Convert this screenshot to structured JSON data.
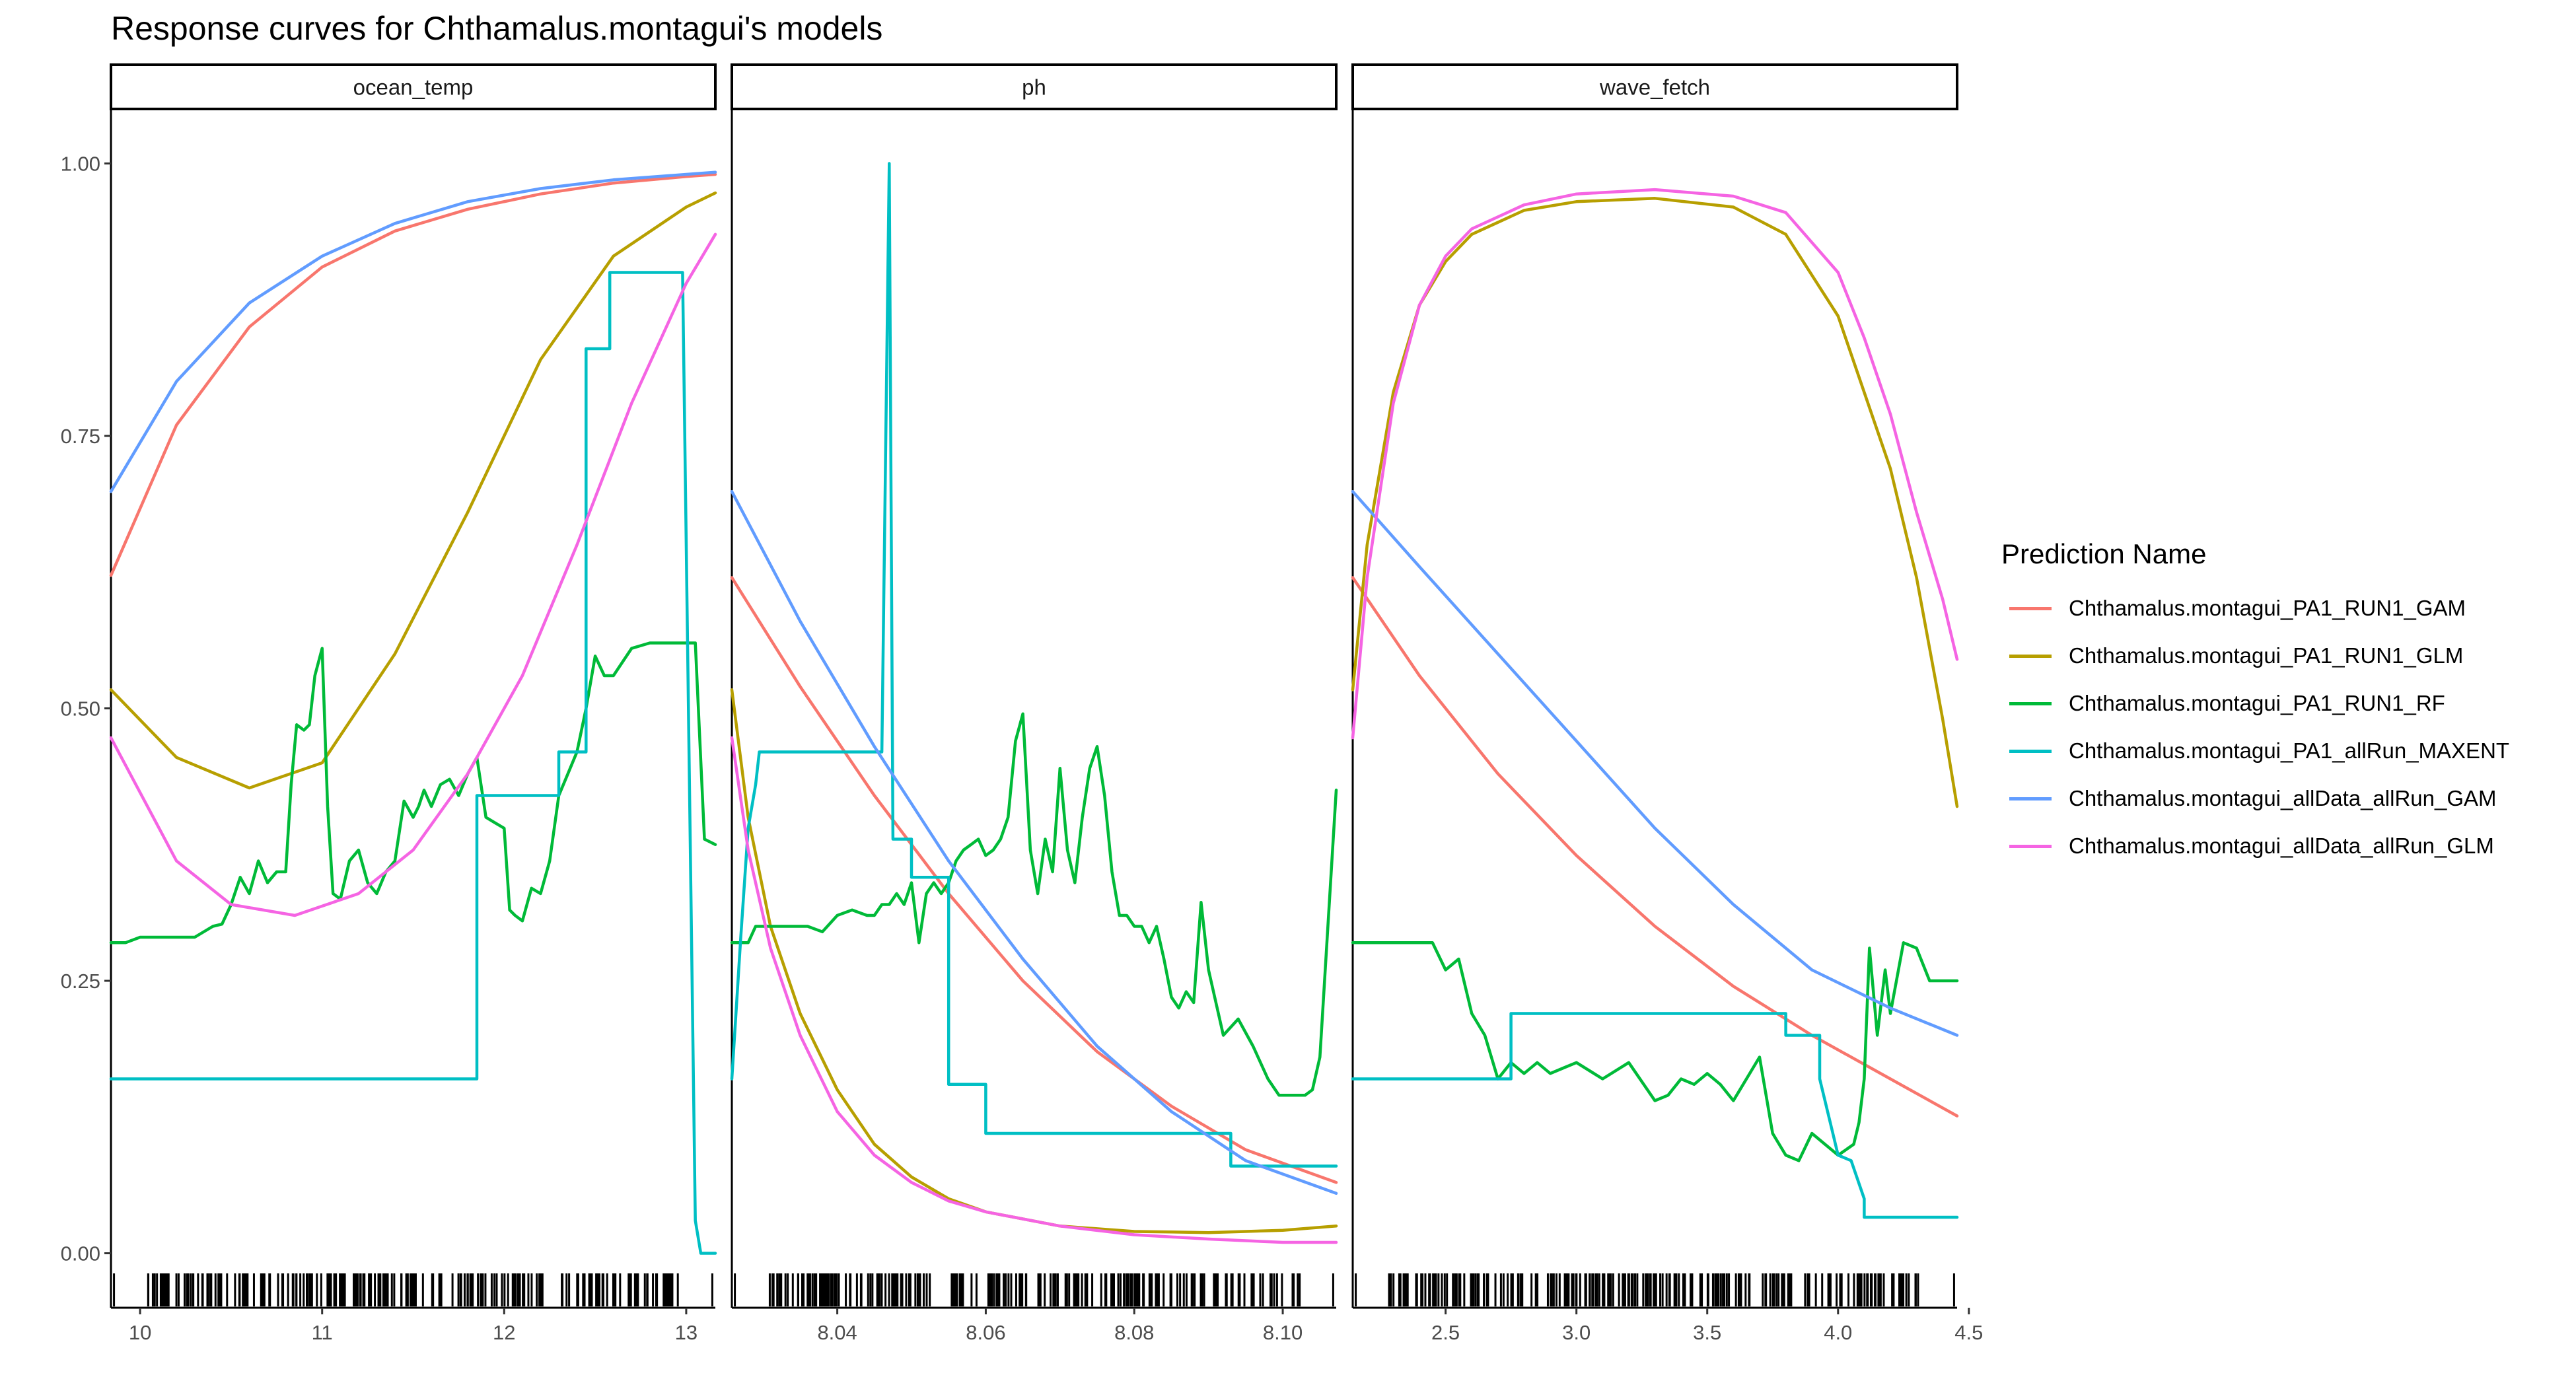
{
  "chart_data": {
    "type": "line",
    "title": "Response curves for Chthamalus.montagui's models",
    "legend": {
      "title": "Prediction Name",
      "placement": "right"
    },
    "y_ticks": [
      "0.00",
      "0.25",
      "0.50",
      "0.75",
      "1.00"
    ],
    "ylim": [
      -0.05,
      1.05
    ],
    "series_names": [
      "Chthamalus.montagui_PA1_RUN1_GAM",
      "Chthamalus.montagui_PA1_RUN1_GLM",
      "Chthamalus.montagui_PA1_RUN1_RF",
      "Chthamalus.montagui_PA1_allRun_MAXENT",
      "Chthamalus.montagui_allData_allRun_GAM",
      "Chthamalus.montagui_allData_allRun_GLM"
    ],
    "series_colors": [
      "#F8766D",
      "#B79F00",
      "#00BA38",
      "#00BFC4",
      "#619CFF",
      "#F564E3"
    ],
    "panels": [
      {
        "name": "ocean_temp",
        "xlim": [
          9.84,
          13.16
        ],
        "x_ticks": [
          {
            "v": 10,
            "label": "10"
          },
          {
            "v": 11,
            "label": "11"
          },
          {
            "v": 12,
            "label": "12"
          },
          {
            "v": 13,
            "label": "13"
          }
        ],
        "series": [
          {
            "name": "Chthamalus.montagui_PA1_RUN1_GAM",
            "x": [
              9.84,
              10.2,
              10.6,
              11.0,
              11.4,
              11.8,
              12.2,
              12.6,
              13.0,
              13.16
            ],
            "y": [
              0.622,
              0.76,
              0.85,
              0.905,
              0.938,
              0.958,
              0.972,
              0.982,
              0.988,
              0.99
            ]
          },
          {
            "name": "Chthamalus.montagui_PA1_RUN1_GLM",
            "x": [
              9.84,
              10.2,
              10.6,
              11.0,
              11.4,
              11.8,
              12.2,
              12.6,
              13.0,
              13.16
            ],
            "y": [
              0.517,
              0.455,
              0.427,
              0.45,
              0.55,
              0.68,
              0.82,
              0.915,
              0.96,
              0.973
            ]
          },
          {
            "name": "Chthamalus.montagui_PA1_RUN1_RF",
            "x": [
              9.84,
              9.92,
              10.0,
              10.1,
              10.2,
              10.3,
              10.4,
              10.45,
              10.5,
              10.55,
              10.6,
              10.65,
              10.7,
              10.75,
              10.8,
              10.83,
              10.86,
              10.9,
              10.93,
              10.96,
              11.0,
              11.03,
              11.06,
              11.1,
              11.15,
              11.2,
              11.25,
              11.3,
              11.35,
              11.4,
              11.45,
              11.5,
              11.53,
              11.56,
              11.6,
              11.65,
              11.7,
              11.75,
              11.8,
              11.85,
              11.9,
              11.95,
              12.0,
              12.03,
              12.06,
              12.1,
              12.15,
              12.2,
              12.25,
              12.3,
              12.35,
              12.4,
              12.45,
              12.5,
              12.55,
              12.6,
              12.7,
              12.8,
              12.9,
              13.0,
              13.05,
              13.1,
              13.16
            ],
            "y": [
              0.285,
              0.285,
              0.29,
              0.29,
              0.29,
              0.29,
              0.3,
              0.302,
              0.32,
              0.345,
              0.33,
              0.36,
              0.34,
              0.35,
              0.35,
              0.43,
              0.485,
              0.48,
              0.485,
              0.53,
              0.555,
              0.41,
              0.33,
              0.325,
              0.36,
              0.37,
              0.34,
              0.33,
              0.35,
              0.36,
              0.415,
              0.4,
              0.41,
              0.425,
              0.41,
              0.43,
              0.435,
              0.42,
              0.44,
              0.455,
              0.4,
              0.395,
              0.39,
              0.315,
              0.31,
              0.305,
              0.335,
              0.33,
              0.36,
              0.42,
              0.44,
              0.46,
              0.5,
              0.548,
              0.53,
              0.53,
              0.555,
              0.56,
              0.56,
              0.56,
              0.56,
              0.38,
              0.375
            ]
          },
          {
            "name": "Chthamalus.montagui_PA1_allRun_MAXENT",
            "x": [
              9.84,
              11.85,
              11.85,
              12.3,
              12.3,
              12.45,
              12.45,
              12.5,
              12.5,
              12.58,
              12.58,
              12.98,
              12.98,
              13.05,
              13.08,
              13.16
            ],
            "y": [
              0.16,
              0.16,
              0.42,
              0.42,
              0.46,
              0.46,
              0.83,
              0.83,
              0.83,
              0.83,
              0.9,
              0.9,
              0.9,
              0.03,
              0.0,
              0.0
            ]
          },
          {
            "name": "Chthamalus.montagui_allData_allRun_GAM",
            "x": [
              9.84,
              10.2,
              10.6,
              11.0,
              11.4,
              11.8,
              12.2,
              12.6,
              13.0,
              13.16
            ],
            "y": [
              0.699,
              0.8,
              0.872,
              0.915,
              0.945,
              0.965,
              0.977,
              0.985,
              0.99,
              0.992
            ]
          },
          {
            "name": "Chthamalus.montagui_allData_allRun_GLM",
            "x": [
              9.84,
              10.2,
              10.5,
              10.85,
              11.2,
              11.5,
              11.8,
              12.1,
              12.4,
              12.7,
              13.0,
              13.16
            ],
            "y": [
              0.473,
              0.36,
              0.32,
              0.31,
              0.33,
              0.37,
              0.44,
              0.53,
              0.65,
              0.78,
              0.89,
              0.935
            ]
          }
        ]
      },
      {
        "name": "ph",
        "xlim": [
          8.0258,
          8.1072
        ],
        "x_ticks": [
          {
            "v": 8.04,
            "label": "8.04"
          },
          {
            "v": 8.06,
            "label": "8.06"
          },
          {
            "v": 8.08,
            "label": "8.08"
          },
          {
            "v": 8.1,
            "label": "8.10"
          }
        ],
        "series": [
          {
            "name": "Chthamalus.montagui_PA1_RUN1_GAM",
            "x": [
              8.0258,
              8.035,
              8.045,
              8.055,
              8.065,
              8.075,
              8.085,
              8.095,
              8.1072
            ],
            "y": [
              0.62,
              0.52,
              0.42,
              0.33,
              0.25,
              0.185,
              0.135,
              0.095,
              0.065
            ]
          },
          {
            "name": "Chthamalus.montagui_PA1_RUN1_GLM",
            "x": [
              8.0258,
              8.028,
              8.031,
              8.035,
              8.04,
              8.045,
              8.05,
              8.055,
              8.06,
              8.07,
              8.08,
              8.09,
              8.1,
              8.1072
            ],
            "y": [
              0.517,
              0.4,
              0.3,
              0.22,
              0.15,
              0.1,
              0.07,
              0.05,
              0.038,
              0.025,
              0.02,
              0.019,
              0.021,
              0.025
            ]
          },
          {
            "name": "Chthamalus.montagui_PA1_RUN1_RF",
            "x": [
              8.0258,
              8.028,
              8.029,
              8.032,
              8.034,
              8.036,
              8.038,
              8.04,
              8.042,
              8.044,
              8.045,
              8.046,
              8.047,
              8.048,
              8.049,
              8.05,
              8.051,
              8.052,
              8.053,
              8.054,
              8.055,
              8.056,
              8.057,
              8.058,
              8.059,
              8.06,
              8.061,
              8.062,
              8.063,
              8.064,
              8.065,
              8.066,
              8.067,
              8.068,
              8.069,
              8.07,
              8.071,
              8.072,
              8.073,
              8.074,
              8.075,
              8.076,
              8.077,
              8.078,
              8.079,
              8.08,
              8.081,
              8.082,
              8.083,
              8.084,
              8.085,
              8.086,
              8.087,
              8.088,
              8.089,
              8.09,
              8.092,
              8.094,
              8.096,
              8.098,
              8.0995,
              8.1,
              8.101,
              8.102,
              8.103,
              8.104,
              8.105,
              8.1072
            ],
            "y": [
              0.285,
              0.285,
              0.3,
              0.3,
              0.3,
              0.3,
              0.295,
              0.31,
              0.315,
              0.31,
              0.31,
              0.32,
              0.32,
              0.33,
              0.32,
              0.34,
              0.285,
              0.33,
              0.34,
              0.33,
              0.34,
              0.36,
              0.37,
              0.375,
              0.38,
              0.365,
              0.37,
              0.38,
              0.4,
              0.47,
              0.495,
              0.37,
              0.33,
              0.38,
              0.35,
              0.445,
              0.37,
              0.34,
              0.4,
              0.445,
              0.465,
              0.42,
              0.35,
              0.31,
              0.31,
              0.3,
              0.3,
              0.285,
              0.3,
              0.27,
              0.235,
              0.225,
              0.24,
              0.23,
              0.322,
              0.26,
              0.2,
              0.215,
              0.19,
              0.16,
              0.145,
              0.145,
              0.145,
              0.145,
              0.145,
              0.15,
              0.18,
              0.425
            ]
          },
          {
            "name": "Chthamalus.montagui_PA1_allRun_MAXENT",
            "x": [
              8.0258,
              8.027,
              8.028,
              8.029,
              8.0295,
              8.0295,
              8.032,
              8.032,
              8.046,
              8.046,
              8.047,
              8.047,
              8.0475,
              8.0475,
              8.05,
              8.05,
              8.052,
              8.052,
              8.055,
              8.055,
              8.06,
              8.06,
              8.093,
              8.093,
              8.1072
            ],
            "y": [
              0.16,
              0.29,
              0.39,
              0.43,
              0.46,
              0.46,
              0.46,
              0.46,
              0.46,
              0.46,
              1.0,
              1.0,
              0.38,
              0.38,
              0.38,
              0.345,
              0.345,
              0.345,
              0.345,
              0.155,
              0.155,
              0.11,
              0.11,
              0.08,
              0.08
            ]
          },
          {
            "name": "Chthamalus.montagui_allData_allRun_GAM",
            "x": [
              8.0258,
              8.035,
              8.045,
              8.055,
              8.065,
              8.075,
              8.085,
              8.095,
              8.1072
            ],
            "y": [
              0.699,
              0.58,
              0.465,
              0.36,
              0.27,
              0.19,
              0.13,
              0.085,
              0.055
            ]
          },
          {
            "name": "Chthamalus.montagui_allData_allRun_GLM",
            "x": [
              8.0258,
              8.028,
              8.031,
              8.035,
              8.04,
              8.045,
              8.05,
              8.055,
              8.06,
              8.07,
              8.08,
              8.09,
              8.1,
              8.1072
            ],
            "y": [
              0.473,
              0.37,
              0.28,
              0.2,
              0.13,
              0.09,
              0.065,
              0.048,
              0.038,
              0.025,
              0.017,
              0.013,
              0.01,
              0.01
            ]
          }
        ]
      },
      {
        "name": "wave_fetch",
        "xlim": [
          2.145,
          4.455
        ],
        "x_ticks": [
          {
            "v": 2.5,
            "label": "2.5"
          },
          {
            "v": 3.0,
            "label": "3.0"
          },
          {
            "v": 3.5,
            "label": "3.5"
          },
          {
            "v": 4.0,
            "label": "4.0"
          },
          {
            "v": 4.5,
            "label": "4.5"
          }
        ],
        "series": [
          {
            "name": "Chthamalus.montagui_PA1_RUN1_GAM",
            "x": [
              2.145,
              2.4,
              2.7,
              3.0,
              3.3,
              3.6,
              3.9,
              4.2,
              4.455
            ],
            "y": [
              0.62,
              0.53,
              0.44,
              0.365,
              0.3,
              0.245,
              0.2,
              0.16,
              0.126
            ]
          },
          {
            "name": "Chthamalus.montagui_PA1_RUN1_GLM",
            "x": [
              2.145,
              2.2,
              2.3,
              2.4,
              2.5,
              2.6,
              2.8,
              3.0,
              3.3,
              3.6,
              3.8,
              4.0,
              4.1,
              4.2,
              4.3,
              4.4,
              4.455
            ],
            "y": [
              0.517,
              0.65,
              0.79,
              0.87,
              0.91,
              0.935,
              0.957,
              0.965,
              0.968,
              0.96,
              0.935,
              0.86,
              0.79,
              0.72,
              0.62,
              0.49,
              0.41
            ]
          },
          {
            "name": "Chthamalus.montagui_PA1_RUN1_RF",
            "x": [
              2.145,
              2.45,
              2.5,
              2.55,
              2.6,
              2.65,
              2.7,
              2.75,
              2.8,
              2.85,
              2.9,
              2.95,
              3.0,
              3.1,
              3.2,
              3.3,
              3.35,
              3.4,
              3.45,
              3.5,
              3.55,
              3.6,
              3.65,
              3.7,
              3.75,
              3.8,
              3.85,
              3.9,
              3.95,
              4.0,
              4.03,
              4.06,
              4.08,
              4.1,
              4.12,
              4.15,
              4.18,
              4.2,
              4.25,
              4.3,
              4.35,
              4.455
            ],
            "y": [
              0.285,
              0.285,
              0.26,
              0.27,
              0.22,
              0.2,
              0.16,
              0.175,
              0.165,
              0.175,
              0.165,
              0.17,
              0.175,
              0.16,
              0.175,
              0.14,
              0.145,
              0.16,
              0.155,
              0.165,
              0.155,
              0.14,
              0.16,
              0.18,
              0.11,
              0.09,
              0.085,
              0.11,
              0.1,
              0.09,
              0.095,
              0.1,
              0.12,
              0.16,
              0.28,
              0.2,
              0.26,
              0.22,
              0.285,
              0.28,
              0.25,
              0.25
            ]
          },
          {
            "name": "Chthamalus.montagui_PA1_allRun_MAXENT",
            "x": [
              2.145,
              2.75,
              2.75,
              3.8,
              3.8,
              3.93,
              3.93,
              3.98,
              4.0,
              4.05,
              4.1,
              4.1,
              4.455
            ],
            "y": [
              0.16,
              0.16,
              0.22,
              0.22,
              0.2,
              0.2,
              0.16,
              0.11,
              0.09,
              0.085,
              0.05,
              0.033,
              0.033
            ]
          },
          {
            "name": "Chthamalus.montagui_allData_allRun_GAM",
            "x": [
              2.145,
              2.4,
              2.7,
              3.0,
              3.3,
              3.6,
              3.9,
              4.2,
              4.455
            ],
            "y": [
              0.699,
              0.63,
              0.55,
              0.47,
              0.39,
              0.32,
              0.26,
              0.225,
              0.2
            ]
          },
          {
            "name": "Chthamalus.montagui_allData_allRun_GLM",
            "x": [
              2.145,
              2.2,
              2.3,
              2.4,
              2.5,
              2.6,
              2.8,
              3.0,
              3.3,
              3.6,
              3.8,
              4.0,
              4.1,
              4.2,
              4.3,
              4.4,
              4.455
            ],
            "y": [
              0.473,
              0.62,
              0.78,
              0.87,
              0.915,
              0.94,
              0.962,
              0.972,
              0.976,
              0.97,
              0.955,
              0.9,
              0.84,
              0.77,
              0.68,
              0.6,
              0.545
            ]
          }
        ]
      }
    ]
  }
}
